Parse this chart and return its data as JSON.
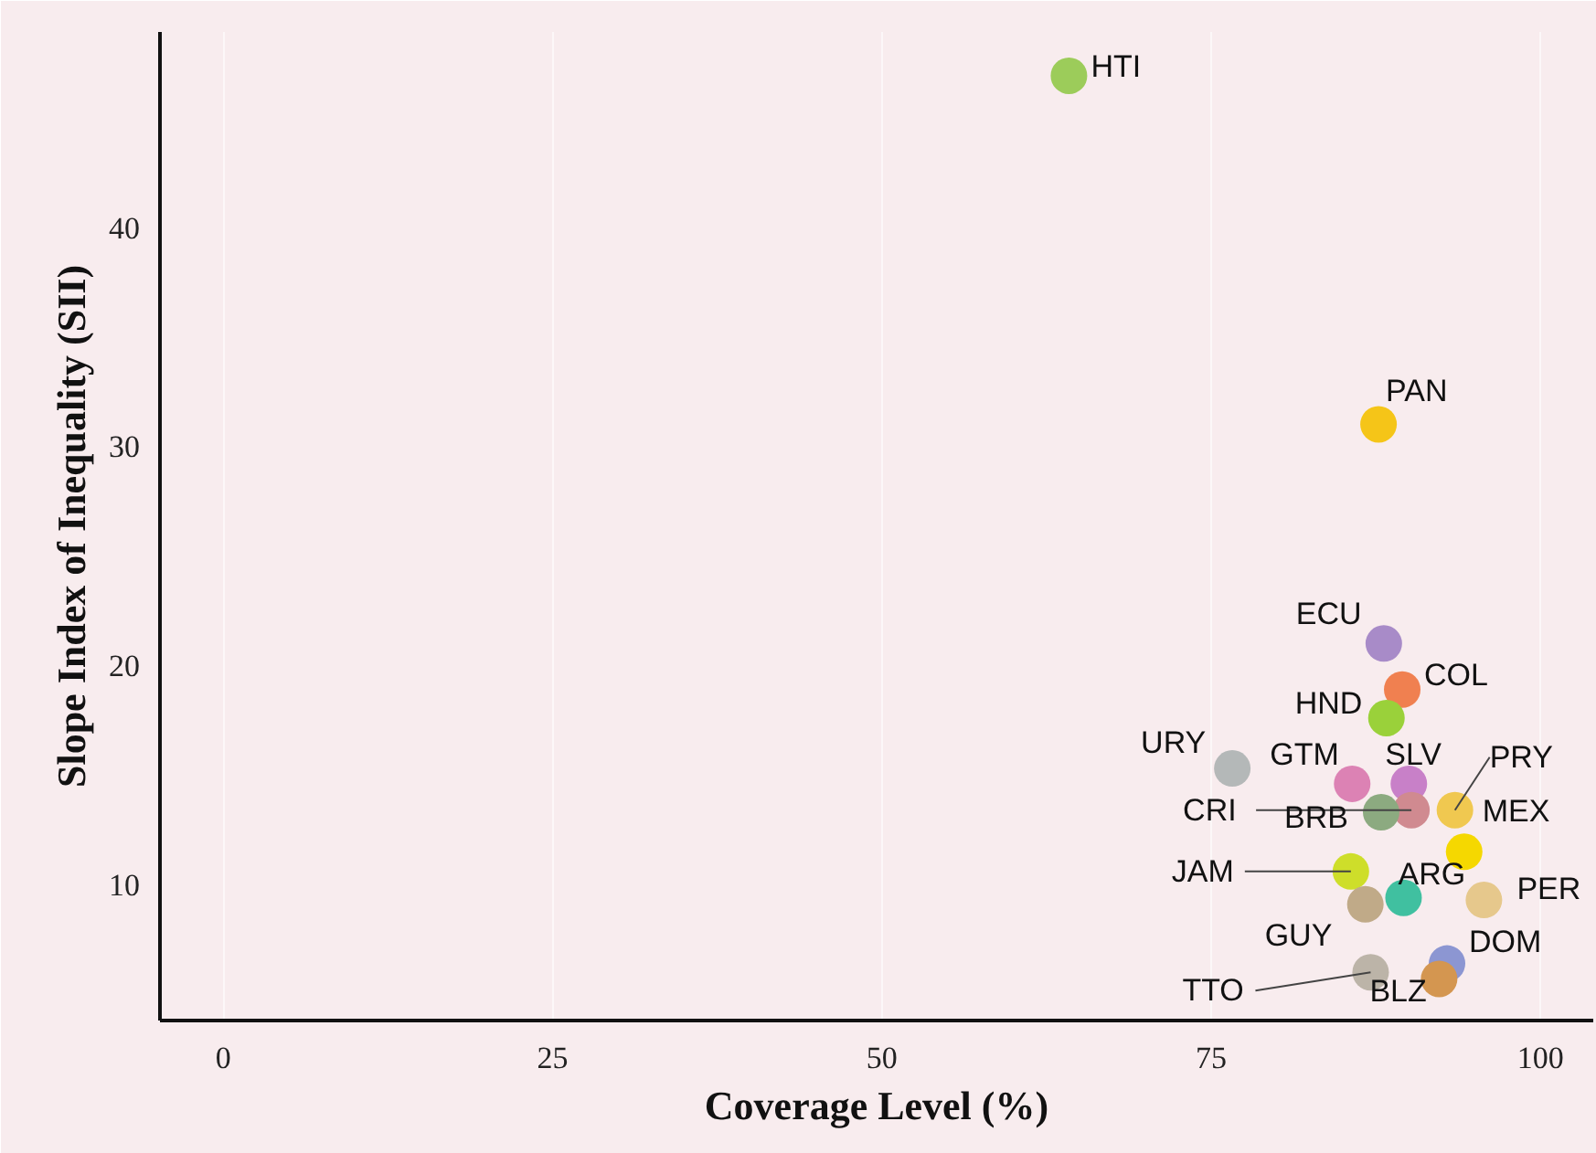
{
  "chart_data": {
    "type": "scatter",
    "xlabel": "Coverage Level (%)",
    "ylabel": "Slope Index of Inequality (SII)",
    "x": [
      64.2,
      87.7,
      88.1,
      89.5,
      88.3,
      76.6,
      85.7,
      90.0,
      90.2,
      87.9,
      93.5,
      94.2,
      85.6,
      89.6,
      95.7,
      86.7,
      92.9,
      92.3,
      87.1
    ],
    "values": [
      46.9,
      31.0,
      21.0,
      18.9,
      17.6,
      15.3,
      14.6,
      14.6,
      13.4,
      13.3,
      13.4,
      11.5,
      10.6,
      9.4,
      9.3,
      9.1,
      6.4,
      5.7,
      6.0
    ],
    "colors": [
      "#9ccc5a",
      "#f5c518",
      "#a88bc8",
      "#f08050",
      "#9ad13a",
      "#b4b8b8",
      "#dc82b4",
      "#c880c8",
      "#d08a90",
      "#8caa80",
      "#f0c850",
      "#f5d800",
      "#cede2a",
      "#40c0a0",
      "#e6c88c",
      "#c0aa88",
      "#8c96d2",
      "#d49650",
      "#bcb4a8"
    ],
    "annotations": [
      {
        "text": "HTI",
        "x": 64.2,
        "y": 46.9
      },
      {
        "text": "PAN",
        "x": 87.7,
        "y": 31.0
      },
      {
        "text": "ECU",
        "x": 88.1,
        "y": 21.0
      },
      {
        "text": "COL",
        "x": 89.5,
        "y": 18.9
      },
      {
        "text": "HND",
        "x": 88.3,
        "y": 17.6
      },
      {
        "text": "URY",
        "x": 76.6,
        "y": 15.3
      },
      {
        "text": "GTM",
        "x": 85.7,
        "y": 14.6
      },
      {
        "text": "SLV",
        "x": 90.0,
        "y": 14.6
      },
      {
        "text": "CRI",
        "x": 90.2,
        "y": 13.4
      },
      {
        "text": "BRB",
        "x": 87.9,
        "y": 13.3
      },
      {
        "text": "PRY",
        "x": 93.5,
        "y": 13.4
      },
      {
        "text": "MEX",
        "x": 94.2,
        "y": 11.5
      },
      {
        "text": "JAM",
        "x": 85.6,
        "y": 10.6
      },
      {
        "text": "ARG",
        "x": 89.6,
        "y": 9.4
      },
      {
        "text": "PER",
        "x": 95.7,
        "y": 9.3
      },
      {
        "text": "GUY",
        "x": 86.7,
        "y": 9.1
      },
      {
        "text": "DOM",
        "x": 92.9,
        "y": 6.4
      },
      {
        "text": "BLZ",
        "x": 92.3,
        "y": 5.7
      },
      {
        "text": "TTO",
        "x": 87.1,
        "y": 6.0
      }
    ],
    "xlim": [
      -4.8,
      104
    ],
    "ylim": [
      3.8,
      48.9
    ],
    "xticks": [
      0,
      25,
      50,
      75,
      100
    ],
    "yticks": [
      10,
      20,
      30,
      40
    ],
    "grid": "x",
    "marker": "circle"
  }
}
